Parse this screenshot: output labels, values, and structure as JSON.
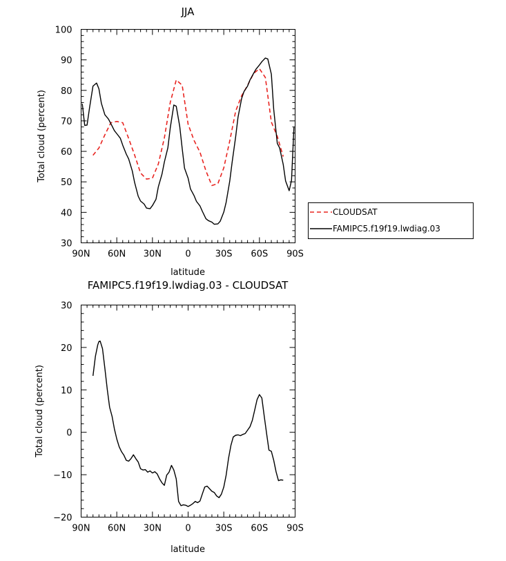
{
  "colors": {
    "cloudsat": "#e8231f",
    "model": "#000000",
    "axes": "#000000",
    "background": "#ffffff"
  },
  "chart_data": [
    {
      "type": "line",
      "title": "JJA",
      "xlabel": "latitude",
      "ylabel": "Total cloud (percent)",
      "xlim": [
        90,
        -90
      ],
      "ylim": [
        30,
        100
      ],
      "x_tick_values": [
        90,
        60,
        30,
        0,
        -30,
        -60,
        -90
      ],
      "x_tick_labels": [
        "90N",
        "60N",
        "30N",
        "0",
        "30S",
        "60S",
        "90S"
      ],
      "y_tick_values": [
        30,
        40,
        50,
        60,
        70,
        80,
        90,
        100
      ],
      "y_tick_labels": [
        "30",
        "40",
        "50",
        "60",
        "70",
        "80",
        "90",
        "100"
      ],
      "grid": false,
      "legend_position": "right",
      "series": [
        {
          "name": "CLOUDSAT",
          "style": "dashed",
          "color": "#e8231f",
          "x": [
            80,
            75,
            70,
            65,
            60,
            55,
            50,
            45,
            40,
            35,
            30,
            25,
            20,
            15,
            10,
            5,
            0,
            -5,
            -10,
            -15,
            -20,
            -25,
            -30,
            -35,
            -40,
            -45,
            -50,
            -55,
            -60,
            -65,
            -70,
            -75,
            -80
          ],
          "y": [
            58.7,
            61.1,
            65.4,
            69.4,
            69.8,
            69.4,
            64.2,
            58.8,
            52.9,
            50.9,
            51.2,
            55.9,
            64.4,
            76.1,
            83.4,
            81.7,
            68.9,
            63.6,
            59.7,
            53.6,
            48.8,
            49.4,
            54.6,
            63.4,
            73.2,
            78.2,
            81.6,
            85.5,
            87.1,
            84.2,
            69.6,
            64.9,
            58.3
          ]
        },
        {
          "name": "FAMIPC5.f19f19.lwdiag.03",
          "style": "solid",
          "color": "#000000",
          "x": [
            89,
            87,
            85,
            83,
            80,
            77,
            75,
            73,
            70,
            67,
            65,
            62,
            60,
            57,
            55,
            52,
            50,
            47,
            45,
            42,
            40,
            37,
            35,
            32,
            30,
            27,
            25,
            22,
            20,
            17,
            15,
            12,
            10,
            7,
            5,
            3,
            0,
            -2,
            -5,
            -7,
            -10,
            -12,
            -15,
            -17,
            -20,
            -22,
            -25,
            -27,
            -30,
            -32,
            -35,
            -37,
            -40,
            -42,
            -45,
            -47,
            -50,
            -52,
            -55,
            -57,
            -60,
            -62,
            -65,
            -67,
            -70,
            -72,
            -75,
            -77,
            -80,
            -82,
            -85,
            -87,
            -89
          ],
          "y": [
            75.6,
            68.5,
            68.6,
            74.1,
            81.4,
            82.4,
            80.5,
            75.8,
            72.0,
            70.6,
            69.1,
            66.8,
            65.8,
            64.3,
            62.0,
            59.1,
            57.5,
            53.6,
            49.8,
            45.3,
            43.7,
            42.7,
            41.4,
            41.2,
            42.2,
            44.3,
            48.4,
            52.5,
            56.5,
            61.2,
            67.8,
            75.2,
            74.8,
            68.1,
            61.0,
            54.5,
            51.2,
            47.7,
            45.5,
            43.6,
            42.1,
            40.3,
            37.9,
            37.3,
            36.8,
            36.1,
            36.2,
            37.1,
            40.1,
            43.3,
            50.2,
            56.3,
            64.8,
            71.2,
            77.3,
            79.6,
            81.4,
            83.4,
            85.5,
            86.9,
            88.3,
            89.4,
            90.6,
            90.3,
            85.3,
            73.8,
            62.6,
            61.1,
            55.7,
            50.3,
            47.1,
            50.5,
            67.9
          ]
        }
      ]
    },
    {
      "type": "line",
      "title": "FAMIPC5.f19f19.lwdiag.03 - CLOUDSAT",
      "xlabel": "latitude",
      "ylabel": "Total cloud (percent)",
      "xlim": [
        90,
        -90
      ],
      "ylim": [
        -20,
        30
      ],
      "x_tick_values": [
        90,
        60,
        30,
        0,
        -30,
        -60,
        -90
      ],
      "x_tick_labels": [
        "90N",
        "60N",
        "30N",
        "0",
        "30S",
        "60S",
        "90S"
      ],
      "y_tick_values": [
        -20,
        -10,
        0,
        10,
        20,
        30
      ],
      "y_tick_labels": [
        "−20",
        "−10",
        "0",
        "10",
        "20",
        "30"
      ],
      "grid": false,
      "series": [
        {
          "color": "#000000",
          "style": "solid",
          "x": [
            80,
            78,
            76,
            75,
            74,
            72,
            70,
            68,
            66,
            64,
            62,
            60,
            58,
            56,
            54,
            52,
            50,
            48,
            46,
            44,
            42,
            40,
            38,
            36,
            34,
            32,
            30,
            28,
            26,
            24,
            22,
            20,
            18,
            16,
            14,
            12,
            10,
            8,
            6,
            4,
            2,
            0,
            -2,
            -4,
            -6,
            -8,
            -10,
            -12,
            -14,
            -16,
            -18,
            -20,
            -22,
            -24,
            -26,
            -28,
            -30,
            -32,
            -34,
            -36,
            -38,
            -40,
            -42,
            -44,
            -46,
            -48,
            -50,
            -52,
            -54,
            -56,
            -58,
            -60,
            -62,
            -64,
            -66,
            -68,
            -70,
            -72,
            -74,
            -76,
            -78,
            -80
          ],
          "y": [
            13.3,
            17.9,
            20.6,
            21.4,
            21.5,
            19.7,
            15.1,
            10.1,
            5.9,
            3.8,
            0.8,
            -1.6,
            -3.4,
            -4.6,
            -5.4,
            -6.6,
            -6.8,
            -6.2,
            -5.3,
            -6.2,
            -7.0,
            -8.6,
            -8.9,
            -8.8,
            -9.4,
            -9.1,
            -9.6,
            -9.3,
            -9.8,
            -11.0,
            -11.9,
            -12.5,
            -10.1,
            -9.4,
            -7.8,
            -8.9,
            -11.0,
            -16.3,
            -17.3,
            -17.1,
            -17.2,
            -17.5,
            -17.2,
            -16.8,
            -16.3,
            -16.6,
            -16.2,
            -14.5,
            -12.9,
            -12.7,
            -13.3,
            -13.9,
            -14.2,
            -15.0,
            -15.4,
            -14.6,
            -12.9,
            -10.1,
            -6.1,
            -3.1,
            -1.1,
            -0.7,
            -0.6,
            -0.8,
            -0.5,
            -0.3,
            0.5,
            1.3,
            2.8,
            5.2,
            7.7,
            8.9,
            8.1,
            3.9,
            -0.3,
            -4.2,
            -4.5,
            -6.6,
            -9.3,
            -11.4,
            -11.2,
            -11.3
          ]
        }
      ]
    }
  ]
}
